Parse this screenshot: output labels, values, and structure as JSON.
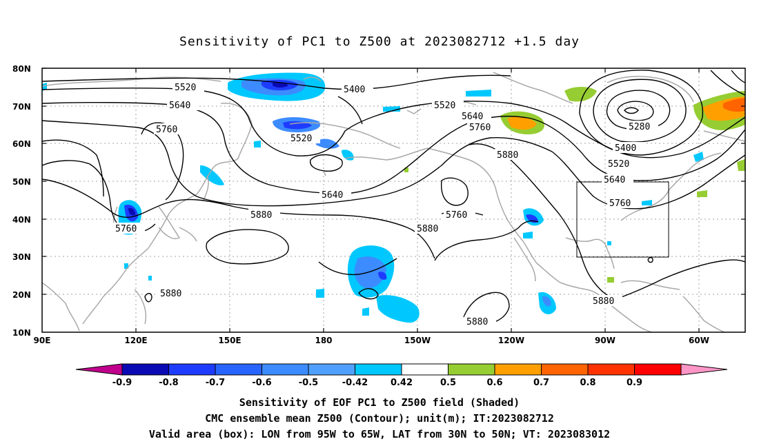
{
  "title": "Sensitivity of PC1 to Z500 at 2023082712 +1.5 day",
  "footer": {
    "line1": "Sensitivity of EOF PC1 to Z500 field (Shaded)",
    "line2": "CMC ensemble mean Z500 (Contour); unit(m); IT:2023082712",
    "line3": "Valid area (box): LON from 95W to 65W, LAT from 30N to 50N; VT: 2023083012"
  },
  "axes": {
    "lat_labels": [
      "80N",
      "70N",
      "60N",
      "50N",
      "40N",
      "30N",
      "20N",
      "10N"
    ],
    "lon_labels": [
      "90E",
      "120E",
      "150E",
      "180",
      "150W",
      "120W",
      "90W",
      "60W"
    ]
  },
  "contour_labels": [
    {
      "id": "c5520a",
      "text": "5520"
    },
    {
      "id": "c5400a",
      "text": "5400"
    },
    {
      "id": "c5640a",
      "text": "5640"
    },
    {
      "id": "c5520b",
      "text": "5520"
    },
    {
      "id": "c5640b",
      "text": "5640"
    },
    {
      "id": "c5760a",
      "text": "5760"
    },
    {
      "id": "c5760b",
      "text": "5760"
    },
    {
      "id": "c5880a",
      "text": "5880"
    },
    {
      "id": "c5520c",
      "text": "5520"
    },
    {
      "id": "c5280",
      "text": "5280"
    },
    {
      "id": "c5400b",
      "text": "5400"
    },
    {
      "id": "c5520d",
      "text": "5520"
    },
    {
      "id": "c5640c",
      "text": "5640"
    },
    {
      "id": "c5760c",
      "text": "5760"
    },
    {
      "id": "c5640d",
      "text": "5640"
    },
    {
      "id": "c5760d",
      "text": "5760"
    },
    {
      "id": "c5880b",
      "text": "5880"
    },
    {
      "id": "c5880c",
      "text": "5880"
    },
    {
      "id": "c5760e",
      "text": "5760"
    },
    {
      "id": "c5880d",
      "text": "5880"
    },
    {
      "id": "c5880e",
      "text": "5880"
    },
    {
      "id": "c5880f",
      "text": "5880"
    }
  ],
  "colorbar": {
    "labels": [
      "-0.9",
      "-0.8",
      "-0.7",
      "-0.6",
      "-0.5",
      "-0.42",
      "0.42",
      "0.5",
      "0.6",
      "0.7",
      "0.8",
      "0.9"
    ],
    "colors": [
      "#c0008c",
      "#0a0ab4",
      "#1e3cff",
      "#2864ff",
      "#3c8cff",
      "#50a0ff",
      "#00c8ff",
      "#ffffff",
      "#96cd32",
      "#ffa000",
      "#ff6400",
      "#ff3200",
      "#ff0000",
      "#ff96c8"
    ]
  },
  "valid_box": {
    "lon_from": "95W",
    "lon_to": "65W",
    "lat_from": "30N",
    "lat_to": "50N"
  }
}
